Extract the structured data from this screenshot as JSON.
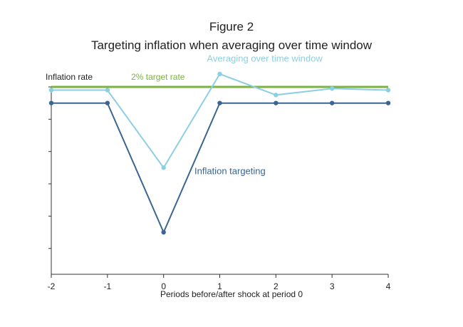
{
  "chart_data": {
    "type": "line",
    "title": "Figure 2",
    "subtitle": "Targeting inflation when averaging over time window",
    "ylabel": "Inflation rate",
    "xlabel": "Periods before/after shock at period 0",
    "x": [
      -2,
      -1,
      0,
      1,
      2,
      3,
      4
    ],
    "xtick_labels": [
      "-2",
      "-1",
      "0",
      "1",
      "2",
      "3",
      "4"
    ],
    "xlim": [
      -2,
      4
    ],
    "ylim": [
      -3.8,
      2.0
    ],
    "yticks": [
      2.0,
      1.0,
      0.0,
      -1.0,
      -2.0,
      -3.0
    ],
    "y_tick_labels_shown": false,
    "series": [
      {
        "name": "Inflation targeting",
        "label": "Inflation targeting",
        "color": "#3b6592",
        "values": [
          1.5,
          1.5,
          -2.5,
          1.5,
          1.5,
          1.5,
          1.5
        ]
      },
      {
        "name": "Averaging over time window",
        "label": "Averaging over time window",
        "color": "#8ccfe2",
        "values": [
          1.9,
          1.9,
          -0.5,
          2.4,
          1.75,
          1.95,
          1.9
        ]
      }
    ],
    "reference_lines": [
      {
        "name": "2% target rate",
        "label": "2% target rate",
        "value": 2.0,
        "color": "#7ab342"
      }
    ]
  }
}
